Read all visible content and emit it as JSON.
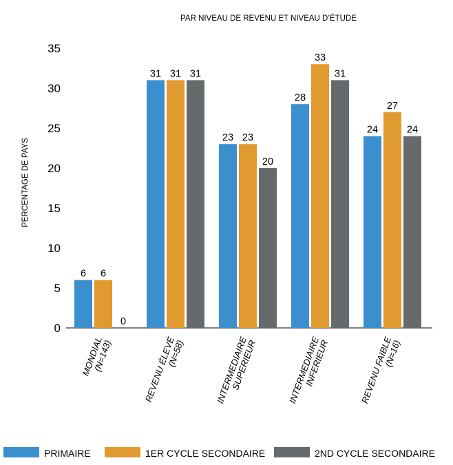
{
  "chart_data": {
    "type": "bar",
    "title": "PAR NIVEAU DE REVENU ET NIVEAU D’ÉTUDE",
    "xlabel": "",
    "ylabel": "PERCENTAGE DE PAYS",
    "ylim": [
      0,
      35
    ],
    "yticks": [
      0,
      5,
      10,
      15,
      20,
      25,
      30,
      35
    ],
    "grid": false,
    "legend_position": "bottom",
    "categories": [
      [
        "MONDIAL",
        "(N=143)"
      ],
      [
        "REVENU ÉLEVÉ",
        "(N=58)"
      ],
      [
        "INTERMEDIAIRE",
        "SUPERIEUR"
      ],
      [
        "INTERMEDIAIRE",
        "INFERIEUR"
      ],
      [
        "REVENU FAIBLE",
        "(N=16)"
      ]
    ],
    "series": [
      {
        "name": "PRIMAIRE",
        "color": "#3b8fcf",
        "values": [
          6,
          31,
          23,
          28,
          24
        ],
        "labels": [
          "6",
          "31",
          "23",
          "28",
          "24"
        ]
      },
      {
        "name": "1ER CYCLE SECONDAIRE",
        "color": "#e09a30",
        "values": [
          6,
          31,
          23,
          33,
          27
        ],
        "labels": [
          "6",
          "31",
          "23",
          "33",
          "27"
        ]
      },
      {
        "name": "2ND CYCLE SECONDAIRE",
        "color": "#666a6c",
        "values": [
          0,
          31,
          20,
          31,
          24
        ],
        "labels": [
          "0",
          "31",
          "20",
          "31",
          "24"
        ]
      }
    ]
  }
}
